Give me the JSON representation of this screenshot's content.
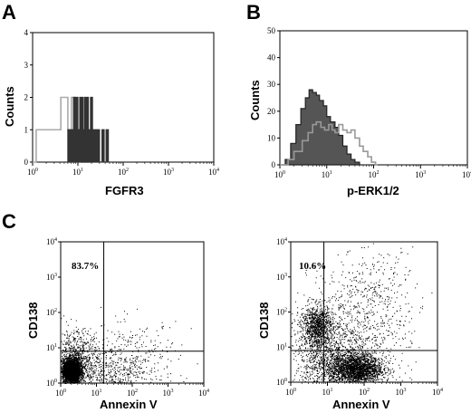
{
  "panels": [
    {
      "letter": "A"
    },
    {
      "letter": "B"
    },
    {
      "letter": "C"
    }
  ],
  "chart_data": [
    {
      "panel": "A",
      "type": "histogram",
      "xlabel": "FGFR3",
      "ylabel": "Counts",
      "xscale": "log",
      "xlim": [
        1,
        10000
      ],
      "ylim": [
        0,
        4
      ],
      "x_tick_labels": [
        {
          "base": "10",
          "exp": "0"
        },
        {
          "base": "10",
          "exp": "1"
        },
        {
          "base": "10",
          "exp": "2"
        },
        {
          "base": "10",
          "exp": "3"
        },
        {
          "base": "10",
          "exp": "4"
        }
      ],
      "y_ticks": [
        "0",
        "1",
        "2",
        "3",
        "4"
      ],
      "series": [
        {
          "color": "#aaaaaa",
          "fill": "none",
          "x": [
            1.0,
            1.2,
            1.4,
            1.7,
            2.0,
            2.4,
            2.9,
            3.5,
            4.2,
            5.0,
            6.0,
            7.2,
            8.6,
            10,
            12,
            14,
            17,
            20
          ],
          "y": [
            0,
            1,
            1,
            1,
            1,
            1,
            1,
            1,
            2,
            2,
            1,
            2,
            0,
            1,
            0,
            0,
            0,
            0
          ]
        },
        {
          "color": "#333333",
          "fill": "#333333",
          "x": [
            4,
            5,
            6,
            7,
            8,
            9,
            10,
            11,
            12,
            13,
            14,
            15,
            17,
            19,
            21,
            24,
            27,
            30,
            34,
            38,
            42,
            47
          ],
          "y": [
            0,
            0,
            1,
            1,
            2,
            2,
            1,
            2,
            2,
            1,
            2,
            2,
            1,
            2,
            1,
            1,
            1,
            0,
            1,
            0,
            1,
            0
          ]
        }
      ]
    },
    {
      "panel": "B",
      "type": "histogram",
      "xlabel": "p-ERK1/2",
      "ylabel": "Counts",
      "xscale": "log",
      "xlim": [
        1,
        10000
      ],
      "ylim": [
        0,
        50
      ],
      "x_tick_labels": [
        {
          "base": "10",
          "exp": "0"
        },
        {
          "base": "10",
          "exp": "1"
        },
        {
          "base": "10",
          "exp": "2"
        },
        {
          "base": "10",
          "exp": "3"
        },
        {
          "base": "10",
          "exp": "4"
        }
      ],
      "y_ticks": [
        "0",
        "10",
        "20",
        "30",
        "40",
        "50"
      ],
      "series": [
        {
          "color": "#222222",
          "fill": "#555555",
          "x": [
            1.0,
            1.3,
            1.7,
            2.2,
            2.8,
            3.5,
            4.2,
            5.0,
            6.0,
            7.0,
            8.5,
            10,
            12,
            15,
            18,
            22,
            27,
            33,
            40,
            50
          ],
          "y": [
            0,
            2,
            8,
            15,
            21,
            25,
            28,
            27,
            26,
            24,
            22,
            18,
            16,
            14,
            11,
            7,
            4,
            2,
            1,
            0
          ]
        },
        {
          "color": "#999999",
          "fill": "none",
          "x": [
            1.0,
            1.5,
            2.0,
            3.0,
            4.0,
            5.0,
            6.0,
            7.5,
            9,
            11,
            13,
            15,
            18,
            22,
            27,
            33,
            40,
            50,
            60,
            75,
            90,
            110
          ],
          "y": [
            0,
            2,
            5,
            9,
            12,
            15,
            16,
            14,
            13,
            15,
            13,
            12,
            15,
            13,
            12,
            13,
            10,
            7,
            5,
            3,
            1,
            0
          ]
        }
      ]
    },
    {
      "panel": "C-left",
      "type": "scatter",
      "xlabel": "Annexin V",
      "ylabel": "CD138",
      "xscale": "log",
      "yscale": "log",
      "xlim": [
        1,
        10000
      ],
      "ylim": [
        1,
        10000
      ],
      "x_tick_labels": [
        {
          "base": "10",
          "exp": "0"
        },
        {
          "base": "10",
          "exp": "1"
        },
        {
          "base": "10",
          "exp": "2"
        },
        {
          "base": "10",
          "exp": "3"
        },
        {
          "base": "10",
          "exp": "4"
        }
      ],
      "y_tick_labels": [
        {
          "base": "10",
          "exp": "0"
        },
        {
          "base": "10",
          "exp": "1"
        },
        {
          "base": "10",
          "exp": "2"
        },
        {
          "base": "10",
          "exp": "3"
        },
        {
          "base": "10",
          "exp": "4"
        }
      ],
      "quadrant_gate": {
        "x": 16,
        "y": 8
      },
      "annotation": "83.7%",
      "clusters": [
        {
          "cx": 0.3,
          "cy": 0.35,
          "sx": 0.12,
          "sy": 0.17,
          "n": 3600
        },
        {
          "cx": 0.45,
          "cy": 0.7,
          "sx": 0.3,
          "sy": 0.4,
          "n": 700
        },
        {
          "cx": 1.9,
          "cy": 0.6,
          "sx": 0.7,
          "sy": 0.55,
          "n": 450
        },
        {
          "cx": 1.2,
          "cy": 0.2,
          "sx": 0.6,
          "sy": 0.3,
          "n": 300
        }
      ]
    },
    {
      "panel": "C-right",
      "type": "scatter",
      "xlabel": "Annexin V",
      "ylabel": "CD138",
      "xscale": "log",
      "yscale": "log",
      "xlim": [
        1,
        10000
      ],
      "ylim": [
        1,
        10000
      ],
      "x_tick_labels": [
        {
          "base": "10",
          "exp": "0"
        },
        {
          "base": "10",
          "exp": "1"
        },
        {
          "base": "10",
          "exp": "2"
        },
        {
          "base": "10",
          "exp": "3"
        },
        {
          "base": "10",
          "exp": "4"
        }
      ],
      "y_tick_labels": [
        {
          "base": "10",
          "exp": "0"
        },
        {
          "base": "10",
          "exp": "1"
        },
        {
          "base": "10",
          "exp": "2"
        },
        {
          "base": "10",
          "exp": "3"
        },
        {
          "base": "10",
          "exp": "4"
        }
      ],
      "quadrant_gate": {
        "x": 8,
        "y": 8
      },
      "annotation": "10.6%",
      "clusters": [
        {
          "cx": 0.7,
          "cy": 1.6,
          "sx": 0.22,
          "sy": 0.3,
          "n": 1000
        },
        {
          "cx": 1.8,
          "cy": 0.38,
          "sx": 0.35,
          "sy": 0.22,
          "n": 2000
        },
        {
          "cx": 1.1,
          "cy": 0.5,
          "sx": 0.5,
          "sy": 0.4,
          "n": 900
        },
        {
          "cx": 1.6,
          "cy": 1.2,
          "sx": 0.8,
          "sy": 0.7,
          "n": 800
        },
        {
          "cx": 2.2,
          "cy": 2.6,
          "sx": 0.6,
          "sy": 0.6,
          "n": 300
        }
      ]
    }
  ]
}
